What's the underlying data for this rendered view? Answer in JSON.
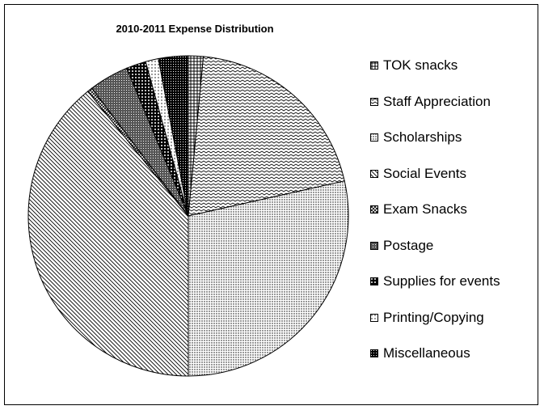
{
  "chart_data": {
    "type": "pie",
    "title": "2010-2011 Expense Distribution",
    "legend_position": "right",
    "slices": [
      {
        "label": "TOK snacks",
        "value": 1.5
      },
      {
        "label": "Staff Appreciation",
        "value": 20.0
      },
      {
        "label": "Scholarships",
        "value": 28.5
      },
      {
        "label": "Social Events",
        "value": 39.2
      },
      {
        "label": "Exam Snacks",
        "value": 0.5
      },
      {
        "label": "Postage",
        "value": 4.0
      },
      {
        "label": "Supplies for events",
        "value": 2.0
      },
      {
        "label": "Printing/Copying",
        "value": 1.3
      },
      {
        "label": "Miscellaneous",
        "value": 3.0
      }
    ]
  }
}
